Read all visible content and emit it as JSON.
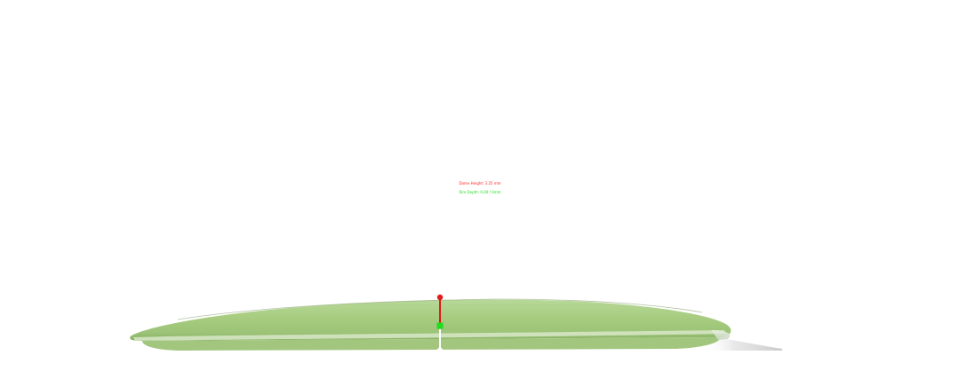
{
  "measurements": {
    "dome_height": {
      "label": "Dome Height: 3.25 mm",
      "color": "#ff2020"
    },
    "rim_depth": {
      "label": "Rim Depth: 0.00 / 0mm",
      "color": "#22dd22"
    }
  },
  "object": {
    "name": "disc-golf-disc-side-profile",
    "color": "#a9cf82"
  }
}
